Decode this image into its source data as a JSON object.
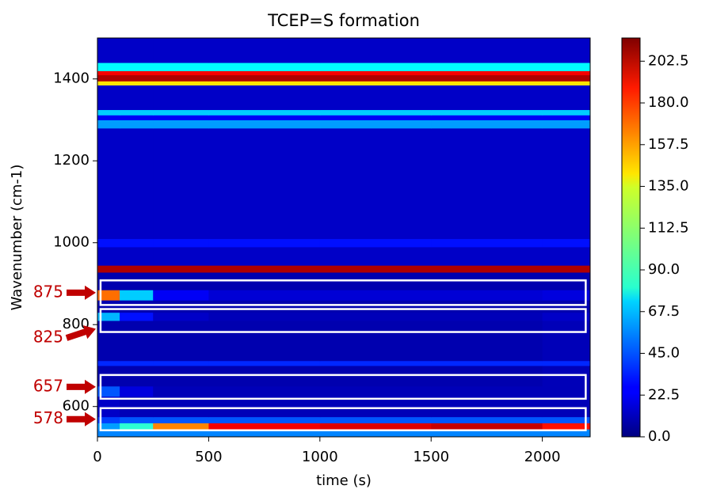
{
  "chart_data": {
    "type": "heatmap",
    "title": "TCEP=S formation",
    "xlabel": "time (s)",
    "ylabel": "Wavenumber (cm-1)",
    "xlim": [
      0,
      2215
    ],
    "ylim": [
      526,
      1500
    ],
    "xticks": [
      0,
      500,
      1000,
      1500,
      2000
    ],
    "yticks": [
      600,
      800,
      1000,
      1200,
      1400
    ],
    "xbins": [
      0,
      100,
      250,
      500,
      1000,
      1500,
      2000,
      2215
    ],
    "ybins": [
      526,
      545,
      560,
      575,
      625,
      650,
      700,
      712,
      810,
      830,
      860,
      885,
      928,
      945,
      990,
      1010,
      1280,
      1300,
      1312,
      1325,
      1385,
      1395,
      1410,
      1420,
      1440,
      1500
    ],
    "z": [
      [
        55,
        55,
        55,
        55,
        55,
        55,
        55
      ],
      [
        60,
        90,
        160,
        190,
        195,
        200,
        185
      ],
      [
        40,
        45,
        45,
        45,
        45,
        45,
        45
      ],
      [
        15,
        12,
        12,
        12,
        12,
        12,
        12
      ],
      [
        45,
        20,
        12,
        12,
        12,
        12,
        12
      ],
      [
        10,
        10,
        10,
        10,
        10,
        10,
        12
      ],
      [
        35,
        35,
        35,
        35,
        35,
        35,
        35
      ],
      [
        10,
        10,
        10,
        10,
        10,
        10,
        12
      ],
      [
        65,
        30,
        15,
        12,
        12,
        12,
        15
      ],
      [
        10,
        10,
        10,
        10,
        10,
        10,
        10
      ],
      [
        165,
        70,
        25,
        18,
        18,
        18,
        20
      ],
      [
        10,
        10,
        10,
        10,
        10,
        10,
        10
      ],
      [
        205,
        205,
        205,
        205,
        205,
        205,
        205
      ],
      [
        15,
        15,
        15,
        15,
        15,
        15,
        15
      ],
      [
        30,
        30,
        30,
        30,
        30,
        30,
        30
      ],
      [
        15,
        15,
        15,
        15,
        15,
        15,
        15
      ],
      [
        60,
        60,
        60,
        60,
        60,
        60,
        60
      ],
      [
        25,
        25,
        25,
        25,
        25,
        25,
        25
      ],
      [
        70,
        70,
        70,
        70,
        70,
        70,
        70
      ],
      [
        15,
        15,
        15,
        15,
        15,
        15,
        15
      ],
      [
        140,
        140,
        140,
        140,
        140,
        140,
        140
      ],
      [
        205,
        205,
        205,
        205,
        205,
        205,
        205
      ],
      [
        190,
        190,
        190,
        190,
        190,
        190,
        190
      ],
      [
        80,
        80,
        80,
        80,
        80,
        80,
        80
      ],
      [
        15,
        15,
        15,
        15,
        15,
        15,
        15
      ]
    ],
    "colormap": "jet",
    "clim": [
      0,
      215
    ],
    "cticks": [
      {
        "value": 0,
        "label": "0.0"
      },
      22.5,
      {
        "value": 45,
        "label": "45.0"
      },
      67.5,
      {
        "value": 90,
        "label": "90.0"
      },
      112.5,
      {
        "value": 135,
        "label": "135.0"
      },
      157.5,
      {
        "value": 180,
        "label": "180.0"
      },
      202.5
    ],
    "annotations": [
      {
        "text": "875",
        "xrange": [
          14,
          2195
        ],
        "yrange": [
          848,
          908
        ]
      },
      {
        "text": "825",
        "xrange": [
          14,
          2195
        ],
        "yrange": [
          782,
          838
        ]
      },
      {
        "text": "657",
        "xrange": [
          14,
          2195
        ],
        "yrange": [
          619,
          677
        ]
      },
      {
        "text": "578",
        "xrange": [
          14,
          2195
        ],
        "yrange": [
          542,
          596
        ]
      }
    ]
  }
}
